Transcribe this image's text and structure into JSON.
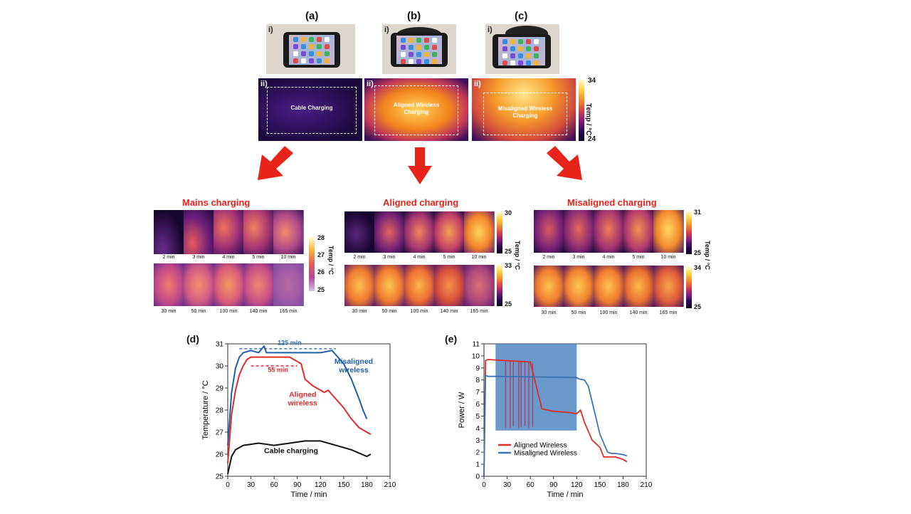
{
  "panels_top": [
    {
      "letter": "(a)",
      "photo_label": "i)",
      "thermal_label": "ii)",
      "thermal_text": "Cable Charging"
    },
    {
      "letter": "(b)",
      "photo_label": "i)",
      "thermal_label": "ii)",
      "thermal_text": "Aligned Wireless Charging"
    },
    {
      "letter": "(c)",
      "photo_label": "i)",
      "thermal_label": "ii)",
      "thermal_text": "Misaligned Wireless Charging"
    }
  ],
  "top_colorbar": {
    "max": "34",
    "min": "24",
    "label": "Temp / °C"
  },
  "sections": [
    {
      "title": "Mains charging",
      "row1": [
        "2 min",
        "3 min",
        "4 min",
        "5 min",
        "10 min"
      ],
      "row2": [
        "30 min",
        "50 min",
        "100 min",
        "140 min",
        "165 min"
      ],
      "cbar": {
        "max": "28",
        "t2": "27",
        "t3": "26",
        "min": "25",
        "label": "Temp / °C"
      }
    },
    {
      "title": "Aligned charging",
      "row1": [
        "2 min",
        "3 min",
        "4 min",
        "5 min",
        "10 min"
      ],
      "row2": [
        "30 min",
        "50 min",
        "100 min",
        "140 min",
        "165 min"
      ],
      "cbar1": {
        "max": "30",
        "min": "25",
        "label": "Temp / °C"
      },
      "cbar2": {
        "max": "33",
        "min": "25"
      }
    },
    {
      "title": "Misaligned charging",
      "row1": [
        "2 min",
        "3 min",
        "4 min",
        "5 min",
        "10 min"
      ],
      "row2": [
        "30 min",
        "50 min",
        "100 min",
        "140 min",
        "165 min"
      ],
      "cbar1": {
        "max": "31",
        "min": "25",
        "label": "Temp / °C"
      },
      "cbar2": {
        "max": "34",
        "min": "25"
      }
    }
  ],
  "chart_data": [
    {
      "panel": "(d)",
      "type": "line",
      "xlabel": "Time / min",
      "ylabel": "Temperature / °C",
      "xlim": [
        0,
        210
      ],
      "ylim": [
        25,
        31
      ],
      "xticks": [
        0,
        30,
        60,
        90,
        120,
        150,
        180,
        210
      ],
      "yticks": [
        25,
        26,
        27,
        28,
        29,
        30,
        31
      ],
      "annotations": [
        "125 min",
        "55 min"
      ],
      "series": [
        {
          "name": "Misaligned wireless",
          "color": "#1f5ea8",
          "x": [
            0,
            5,
            10,
            15,
            20,
            30,
            40,
            47,
            50,
            60,
            80,
            100,
            120,
            135,
            140,
            150,
            160,
            170,
            175,
            180
          ],
          "y": [
            26.4,
            28.8,
            29.9,
            30.4,
            30.6,
            30.7,
            30.6,
            30.9,
            30.6,
            30.6,
            30.6,
            30.6,
            30.6,
            30.7,
            30.5,
            30.1,
            29.4,
            28.5,
            28.0,
            27.6
          ]
        },
        {
          "name": "Aligned wireless",
          "color": "#e02b2b",
          "x": [
            0,
            5,
            10,
            15,
            20,
            25,
            30,
            40,
            50,
            60,
            80,
            95,
            100,
            110,
            120,
            125,
            130,
            140,
            150,
            160,
            170,
            180,
            185
          ],
          "y": [
            25.6,
            27.8,
            28.9,
            29.6,
            30.0,
            30.3,
            30.4,
            30.4,
            30.4,
            30.4,
            30.4,
            30.1,
            29.4,
            29.1,
            28.9,
            28.8,
            28.9,
            28.5,
            28.1,
            27.6,
            27.2,
            27.0,
            26.9
          ]
        },
        {
          "name": "Cable charging",
          "color": "#111111",
          "x": [
            0,
            5,
            10,
            20,
            40,
            60,
            80,
            100,
            120,
            140,
            160,
            180,
            185
          ],
          "y": [
            25.1,
            25.9,
            26.2,
            26.4,
            26.5,
            26.4,
            26.5,
            26.6,
            26.6,
            26.4,
            26.2,
            25.9,
            26.0
          ]
        }
      ]
    },
    {
      "panel": "(e)",
      "type": "line",
      "xlabel": "Time / min",
      "ylabel": "Power / W",
      "xlim": [
        0,
        210
      ],
      "ylim": [
        0,
        11
      ],
      "xticks": [
        0,
        30,
        60,
        90,
        120,
        150,
        180,
        210
      ],
      "yticks": [
        0,
        1,
        2,
        3,
        4,
        5,
        6,
        7,
        8,
        9,
        10,
        11
      ],
      "legend": "bottom-left",
      "series": [
        {
          "name": "Aligned Wireless",
          "color": "#e02b2b",
          "x": [
            0,
            2,
            5,
            30,
            60,
            75,
            90,
            110,
            120,
            125,
            130,
            140,
            150,
            155,
            160,
            170,
            180,
            185
          ],
          "y": [
            0,
            9.6,
            9.7,
            9.6,
            9.5,
            5.6,
            5.4,
            5.3,
            5.2,
            5.5,
            4.5,
            3.0,
            2.4,
            1.6,
            1.6,
            1.6,
            1.4,
            1.2
          ]
        },
        {
          "name": "Misaligned Wireless",
          "color": "#3b73b5",
          "x": [
            0,
            2,
            5,
            15,
            120,
            122,
            130,
            135,
            150,
            160,
            165,
            170,
            180,
            185
          ],
          "y": [
            0,
            8.4,
            8.3,
            8.3,
            8.2,
            8.1,
            8.0,
            7.5,
            3.5,
            2.0,
            1.9,
            1.9,
            1.8,
            1.7
          ]
        }
      ],
      "noise_band": {
        "series": "Misaligned Wireless",
        "x": [
          15,
          120
        ],
        "y": [
          3.8,
          11
        ]
      }
    }
  ]
}
